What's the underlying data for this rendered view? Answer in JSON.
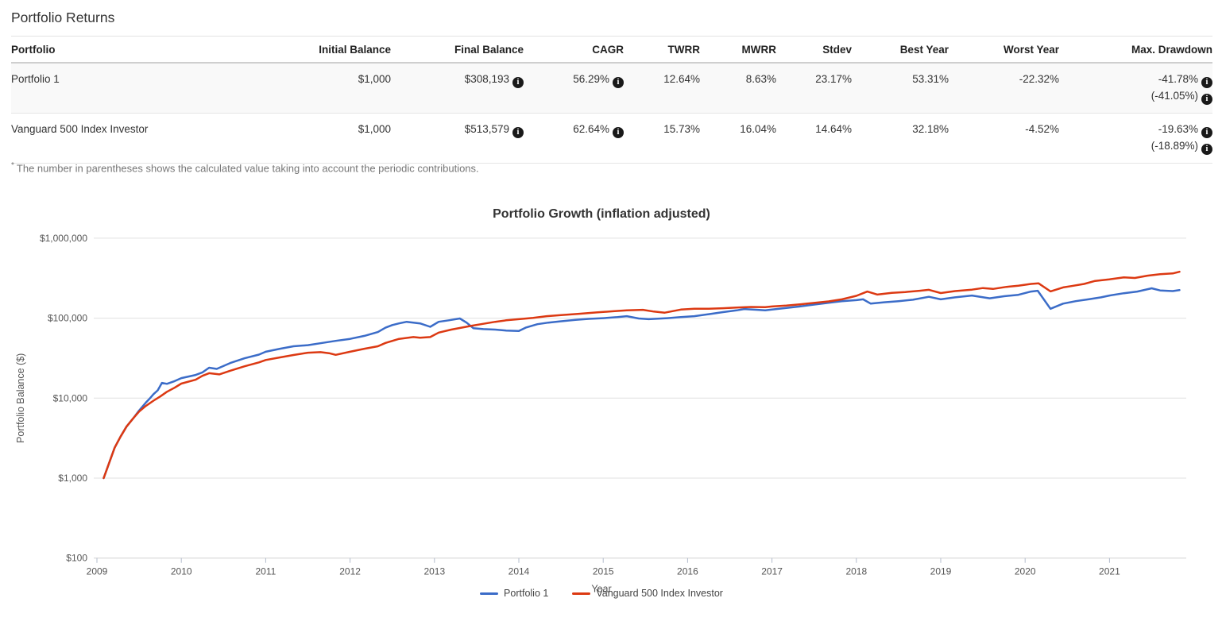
{
  "page": {
    "title": "Portfolio Returns"
  },
  "icons": {
    "info_glyph": "i"
  },
  "table": {
    "columns": [
      {
        "key": "portfolio",
        "label": "Portfolio",
        "align": "left"
      },
      {
        "key": "initial_balance",
        "label": "Initial Balance",
        "align": "right"
      },
      {
        "key": "final_balance",
        "label": "Final Balance",
        "align": "right"
      },
      {
        "key": "cagr",
        "label": "CAGR",
        "align": "right"
      },
      {
        "key": "twrr",
        "label": "TWRR",
        "align": "right"
      },
      {
        "key": "mwrr",
        "label": "MWRR",
        "align": "right"
      },
      {
        "key": "stdev",
        "label": "Stdev",
        "align": "right"
      },
      {
        "key": "best_year",
        "label": "Best Year",
        "align": "right"
      },
      {
        "key": "worst_year",
        "label": "Worst Year",
        "align": "right"
      },
      {
        "key": "max_drawdown",
        "label": "Max. Drawdown",
        "align": "right"
      }
    ],
    "rows": [
      {
        "portfolio": "Portfolio 1",
        "initial_balance": "$1,000",
        "final_balance": {
          "text": "$308,193",
          "info": true
        },
        "cagr": {
          "text": "56.29%",
          "info": true
        },
        "twrr": "12.64%",
        "mwrr": "8.63%",
        "stdev": "23.17%",
        "best_year": "53.31%",
        "worst_year": "-22.32%",
        "max_drawdown": {
          "lines": [
            {
              "text": "-41.78%",
              "info": true
            },
            {
              "text": "(-41.05%)",
              "info": true
            }
          ]
        }
      },
      {
        "portfolio": "Vanguard 500 Index Investor",
        "initial_balance": "$1,000",
        "final_balance": {
          "text": "$513,579",
          "info": true
        },
        "cagr": {
          "text": "62.64%",
          "info": true
        },
        "twrr": "15.73%",
        "mwrr": "16.04%",
        "stdev": "14.64%",
        "best_year": "32.18%",
        "worst_year": "-4.52%",
        "max_drawdown": {
          "lines": [
            {
              "text": "-19.63%",
              "info": true
            },
            {
              "text": "(-18.89%)",
              "info": true
            }
          ]
        }
      }
    ],
    "footnote_marker": "*",
    "footnote": "The number in parentheses shows the calculated value taking into account the periodic contributions."
  },
  "chart_data": {
    "type": "line",
    "title": "Portfolio Growth (inflation adjusted)",
    "xlabel": "Year",
    "ylabel": "Portfolio Balance ($)",
    "y_scale": "log",
    "grid": true,
    "legend_position": "bottom",
    "ylim": [
      100,
      1000000
    ],
    "xlim": [
      2009,
      2022
    ],
    "x_ticks": [
      2009,
      2010,
      2011,
      2012,
      2013,
      2014,
      2015,
      2016,
      2017,
      2018,
      2019,
      2020,
      2021
    ],
    "y_ticks": [
      {
        "label": "$100",
        "value": 100
      },
      {
        "label": "$1,000",
        "value": 1000
      },
      {
        "label": "$10,000",
        "value": 10000
      },
      {
        "label": "$100,000",
        "value": 100000
      },
      {
        "label": "$1,000,000",
        "value": 1000000
      }
    ],
    "colors": {
      "grid": "#e0e0e0",
      "axis": "#d0d0d0",
      "tick": "#b3bccc",
      "tick_text": "#555",
      "title_text": "#333"
    },
    "series": [
      {
        "name": "Portfolio 1",
        "color": "#3b6cc8",
        "points": [
          [
            2009.08,
            1000
          ],
          [
            2009.15,
            1600
          ],
          [
            2009.21,
            2400
          ],
          [
            2009.28,
            3300
          ],
          [
            2009.35,
            4400
          ],
          [
            2009.43,
            5600
          ],
          [
            2009.5,
            7000
          ],
          [
            2009.58,
            8800
          ],
          [
            2009.63,
            10000
          ],
          [
            2009.67,
            11200
          ],
          [
            2009.72,
            12500
          ],
          [
            2009.77,
            15500
          ],
          [
            2009.83,
            15100
          ],
          [
            2009.92,
            16300
          ],
          [
            2010.0,
            17800
          ],
          [
            2010.17,
            19500
          ],
          [
            2010.25,
            21000
          ],
          [
            2010.33,
            24000
          ],
          [
            2010.42,
            23200
          ],
          [
            2010.58,
            27500
          ],
          [
            2010.75,
            31500
          ],
          [
            2010.92,
            35000
          ],
          [
            2011.0,
            38000
          ],
          [
            2011.17,
            41500
          ],
          [
            2011.33,
            44500
          ],
          [
            2011.5,
            46000
          ],
          [
            2011.67,
            49000
          ],
          [
            2011.83,
            52000
          ],
          [
            2012.0,
            55000
          ],
          [
            2012.17,
            60000
          ],
          [
            2012.33,
            67000
          ],
          [
            2012.42,
            76000
          ],
          [
            2012.5,
            82000
          ],
          [
            2012.58,
            86000
          ],
          [
            2012.67,
            90000
          ],
          [
            2012.75,
            88000
          ],
          [
            2012.83,
            86000
          ],
          [
            2012.95,
            78000
          ],
          [
            2013.05,
            90000
          ],
          [
            2013.17,
            94000
          ],
          [
            2013.3,
            99000
          ],
          [
            2013.38,
            88000
          ],
          [
            2013.46,
            75000
          ],
          [
            2013.58,
            73000
          ],
          [
            2013.72,
            72000
          ],
          [
            2013.85,
            70000
          ],
          [
            2014.0,
            69000
          ],
          [
            2014.08,
            76000
          ],
          [
            2014.22,
            84000
          ],
          [
            2014.35,
            88000
          ],
          [
            2014.48,
            91000
          ],
          [
            2014.67,
            95000
          ],
          [
            2014.83,
            98000
          ],
          [
            2015.0,
            100000
          ],
          [
            2015.17,
            103000
          ],
          [
            2015.28,
            106000
          ],
          [
            2015.42,
            99000
          ],
          [
            2015.54,
            97000
          ],
          [
            2015.76,
            100000
          ],
          [
            2015.92,
            103000
          ],
          [
            2016.08,
            106000
          ],
          [
            2016.25,
            112000
          ],
          [
            2016.42,
            119000
          ],
          [
            2016.58,
            125000
          ],
          [
            2016.67,
            130000
          ],
          [
            2016.83,
            127000
          ],
          [
            2016.92,
            125000
          ],
          [
            2017.0,
            128000
          ],
          [
            2017.17,
            134000
          ],
          [
            2017.33,
            140000
          ],
          [
            2017.5,
            148000
          ],
          [
            2017.67,
            156000
          ],
          [
            2017.83,
            163000
          ],
          [
            2018.0,
            168000
          ],
          [
            2018.08,
            172000
          ],
          [
            2018.17,
            152000
          ],
          [
            2018.33,
            158000
          ],
          [
            2018.5,
            163000
          ],
          [
            2018.67,
            170000
          ],
          [
            2018.86,
            185000
          ],
          [
            2019.0,
            172000
          ],
          [
            2019.17,
            182000
          ],
          [
            2019.37,
            192000
          ],
          [
            2019.58,
            177000
          ],
          [
            2019.75,
            188000
          ],
          [
            2019.92,
            196000
          ],
          [
            2020.07,
            215000
          ],
          [
            2020.15,
            220000
          ],
          [
            2020.3,
            131000
          ],
          [
            2020.45,
            152000
          ],
          [
            2020.6,
            163000
          ],
          [
            2020.75,
            172000
          ],
          [
            2020.9,
            182000
          ],
          [
            2021.0,
            192000
          ],
          [
            2021.17,
            205000
          ],
          [
            2021.33,
            215000
          ],
          [
            2021.5,
            236000
          ],
          [
            2021.6,
            222000
          ],
          [
            2021.75,
            218000
          ],
          [
            2021.83,
            224000
          ]
        ]
      },
      {
        "name": "Vanguard 500 Index Investor",
        "color": "#dc3912",
        "points": [
          [
            2009.08,
            1000
          ],
          [
            2009.15,
            1600
          ],
          [
            2009.21,
            2400
          ],
          [
            2009.28,
            3300
          ],
          [
            2009.35,
            4400
          ],
          [
            2009.43,
            5600
          ],
          [
            2009.5,
            6800
          ],
          [
            2009.58,
            8000
          ],
          [
            2009.67,
            9300
          ],
          [
            2009.75,
            10500
          ],
          [
            2009.83,
            12000
          ],
          [
            2009.92,
            13500
          ],
          [
            2010.0,
            15200
          ],
          [
            2010.17,
            17000
          ],
          [
            2010.25,
            19000
          ],
          [
            2010.33,
            20500
          ],
          [
            2010.45,
            19800
          ],
          [
            2010.58,
            22000
          ],
          [
            2010.75,
            25000
          ],
          [
            2010.92,
            28000
          ],
          [
            2011.0,
            30000
          ],
          [
            2011.17,
            32300
          ],
          [
            2011.33,
            34600
          ],
          [
            2011.5,
            37000
          ],
          [
            2011.65,
            37600
          ],
          [
            2011.75,
            36500
          ],
          [
            2011.83,
            34800
          ],
          [
            2012.0,
            38000
          ],
          [
            2012.17,
            41500
          ],
          [
            2012.33,
            44500
          ],
          [
            2012.42,
            49000
          ],
          [
            2012.58,
            55000
          ],
          [
            2012.75,
            58000
          ],
          [
            2012.83,
            57000
          ],
          [
            2012.95,
            58000
          ],
          [
            2013.05,
            66000
          ],
          [
            2013.2,
            72000
          ],
          [
            2013.43,
            80000
          ],
          [
            2013.58,
            85000
          ],
          [
            2013.72,
            90000
          ],
          [
            2013.85,
            94000
          ],
          [
            2014.0,
            97000
          ],
          [
            2014.17,
            101000
          ],
          [
            2014.33,
            106000
          ],
          [
            2014.5,
            109000
          ],
          [
            2014.7,
            113000
          ],
          [
            2014.92,
            118000
          ],
          [
            2015.12,
            122000
          ],
          [
            2015.28,
            125000
          ],
          [
            2015.47,
            127000
          ],
          [
            2015.6,
            121000
          ],
          [
            2015.73,
            117000
          ],
          [
            2015.92,
            128000
          ],
          [
            2016.08,
            131000
          ],
          [
            2016.25,
            131000
          ],
          [
            2016.42,
            133000
          ],
          [
            2016.58,
            136000
          ],
          [
            2016.75,
            138000
          ],
          [
            2016.92,
            137000
          ],
          [
            2017.0,
            140000
          ],
          [
            2017.17,
            144000
          ],
          [
            2017.33,
            149000
          ],
          [
            2017.5,
            155000
          ],
          [
            2017.67,
            162000
          ],
          [
            2017.83,
            172000
          ],
          [
            2018.0,
            190000
          ],
          [
            2018.13,
            215000
          ],
          [
            2018.25,
            197000
          ],
          [
            2018.42,
            207000
          ],
          [
            2018.58,
            212000
          ],
          [
            2018.75,
            220000
          ],
          [
            2018.86,
            226000
          ],
          [
            2019.0,
            206000
          ],
          [
            2019.17,
            218000
          ],
          [
            2019.37,
            227000
          ],
          [
            2019.5,
            238000
          ],
          [
            2019.62,
            232000
          ],
          [
            2019.78,
            246000
          ],
          [
            2019.92,
            255000
          ],
          [
            2020.07,
            268000
          ],
          [
            2020.16,
            272000
          ],
          [
            2020.3,
            216000
          ],
          [
            2020.45,
            242000
          ],
          [
            2020.55,
            252000
          ],
          [
            2020.7,
            268000
          ],
          [
            2020.83,
            292000
          ],
          [
            2021.0,
            306000
          ],
          [
            2021.17,
            324000
          ],
          [
            2021.3,
            318000
          ],
          [
            2021.45,
            340000
          ],
          [
            2021.6,
            355000
          ],
          [
            2021.75,
            362000
          ],
          [
            2021.83,
            380000
          ]
        ]
      }
    ]
  }
}
